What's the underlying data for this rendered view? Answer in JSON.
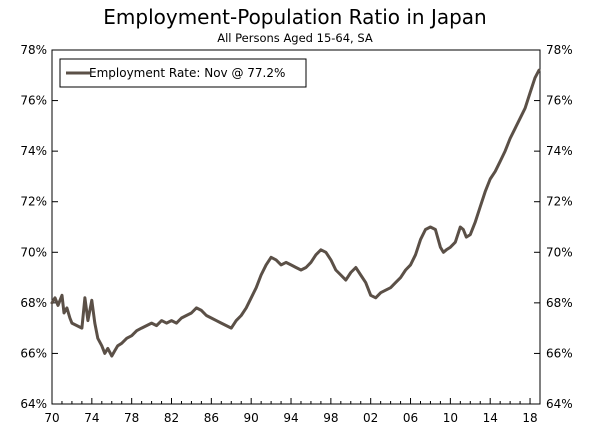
{
  "chart_data": {
    "type": "line",
    "title": "Employment-Population Ratio in Japan",
    "subtitle": "All Persons Aged 15-64, SA",
    "xlabel": "",
    "ylabel": "",
    "xlim": [
      1970,
      2019
    ],
    "ylim": [
      64,
      78
    ],
    "x_tick_labels": [
      "70",
      "74",
      "78",
      "82",
      "86",
      "90",
      "94",
      "98",
      "02",
      "06",
      "10",
      "14",
      "18"
    ],
    "y_tick_labels": [
      "64%",
      "66%",
      "68%",
      "70%",
      "72%",
      "74%",
      "76%",
      "78%"
    ],
    "legend": {
      "position": "top-left",
      "label": "Employment Rate: Nov @ 77.2%"
    },
    "grid": false,
    "colors": {
      "series": "#5b5047",
      "axis": "#000000"
    },
    "series": [
      {
        "name": "Employment Rate: Nov @ 77.2%",
        "x": [
          1970.0,
          1970.3,
          1970.6,
          1971.0,
          1971.2,
          1971.5,
          1971.8,
          1972.0,
          1972.5,
          1973.0,
          1973.3,
          1973.6,
          1974.0,
          1974.3,
          1974.6,
          1975.0,
          1975.3,
          1975.6,
          1976.0,
          1976.3,
          1976.6,
          1977.0,
          1977.5,
          1978.0,
          1978.5,
          1979.0,
          1979.5,
          1980.0,
          1980.5,
          1981.0,
          1981.5,
          1982.0,
          1982.5,
          1983.0,
          1983.5,
          1984.0,
          1984.5,
          1985.0,
          1985.5,
          1986.0,
          1986.5,
          1987.0,
          1987.5,
          1988.0,
          1988.5,
          1989.0,
          1989.5,
          1990.0,
          1990.5,
          1991.0,
          1991.5,
          1992.0,
          1992.5,
          1993.0,
          1993.5,
          1994.0,
          1994.5,
          1995.0,
          1995.5,
          1996.0,
          1996.5,
          1997.0,
          1997.5,
          1998.0,
          1998.5,
          1999.0,
          1999.5,
          2000.0,
          2000.5,
          2001.0,
          2001.5,
          2002.0,
          2002.5,
          2003.0,
          2003.5,
          2004.0,
          2004.5,
          2005.0,
          2005.5,
          2006.0,
          2006.5,
          2007.0,
          2007.5,
          2008.0,
          2008.5,
          2009.0,
          2009.3,
          2009.6,
          2010.0,
          2010.5,
          2011.0,
          2011.3,
          2011.6,
          2012.0,
          2012.5,
          2013.0,
          2013.5,
          2014.0,
          2014.5,
          2015.0,
          2015.5,
          2016.0,
          2016.5,
          2017.0,
          2017.5,
          2018.0,
          2018.5,
          2018.9
        ],
        "values": [
          68.0,
          68.2,
          67.9,
          68.3,
          67.6,
          67.8,
          67.4,
          67.2,
          67.1,
          67.0,
          68.2,
          67.3,
          68.1,
          67.2,
          66.6,
          66.3,
          66.0,
          66.2,
          65.9,
          66.1,
          66.3,
          66.4,
          66.6,
          66.7,
          66.9,
          67.0,
          67.1,
          67.2,
          67.1,
          67.3,
          67.2,
          67.3,
          67.2,
          67.4,
          67.5,
          67.6,
          67.8,
          67.7,
          67.5,
          67.4,
          67.3,
          67.2,
          67.1,
          67.0,
          67.3,
          67.5,
          67.8,
          68.2,
          68.6,
          69.1,
          69.5,
          69.8,
          69.7,
          69.5,
          69.6,
          69.5,
          69.4,
          69.3,
          69.4,
          69.6,
          69.9,
          70.1,
          70.0,
          69.7,
          69.3,
          69.1,
          68.9,
          69.2,
          69.4,
          69.1,
          68.8,
          68.3,
          68.2,
          68.4,
          68.5,
          68.6,
          68.8,
          69.0,
          69.3,
          69.5,
          69.9,
          70.5,
          70.9,
          71.0,
          70.9,
          70.2,
          70.0,
          70.1,
          70.2,
          70.4,
          71.0,
          70.9,
          70.6,
          70.7,
          71.2,
          71.8,
          72.4,
          72.9,
          73.2,
          73.6,
          74.0,
          74.5,
          74.9,
          75.3,
          75.7,
          76.3,
          76.9,
          77.2
        ]
      }
    ]
  }
}
